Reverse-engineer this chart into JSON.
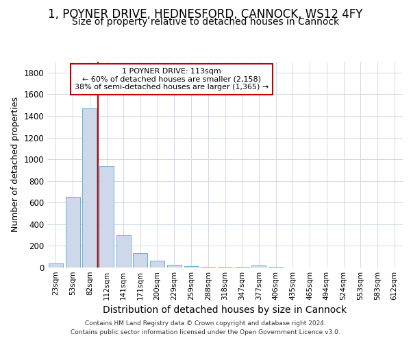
{
  "title1": "1, POYNER DRIVE, HEDNESFORD, CANNOCK, WS12 4FY",
  "title2": "Size of property relative to detached houses in Cannock",
  "xlabel": "Distribution of detached houses by size in Cannock",
  "ylabel": "Number of detached properties",
  "categories": [
    "23sqm",
    "53sqm",
    "82sqm",
    "112sqm",
    "141sqm",
    "171sqm",
    "200sqm",
    "229sqm",
    "259sqm",
    "288sqm",
    "318sqm",
    "347sqm",
    "377sqm",
    "406sqm",
    "435sqm",
    "465sqm",
    "494sqm",
    "524sqm",
    "553sqm",
    "583sqm",
    "612sqm"
  ],
  "values": [
    40,
    650,
    1470,
    940,
    295,
    130,
    65,
    25,
    10,
    5,
    5,
    5,
    20,
    5,
    0,
    0,
    0,
    0,
    0,
    0,
    0
  ],
  "bar_color": "#cdd9ea",
  "bar_edge_color": "#6baed6",
  "vline_color": "#c00000",
  "vline_x": 2.5,
  "annotation_text": "1 POYNER DRIVE: 113sqm\n← 60% of detached houses are smaller (2,158)\n38% of semi-detached houses are larger (1,365) →",
  "annotation_box_facecolor": "#ffffff",
  "annotation_box_edgecolor": "#c00000",
  "ylim": [
    0,
    1900
  ],
  "yticks": [
    0,
    200,
    400,
    600,
    800,
    1000,
    1200,
    1400,
    1600,
    1800
  ],
  "footer_line1": "Contains HM Land Registry data © Crown copyright and database right 2024.",
  "footer_line2": "Contains public sector information licensed under the Open Government Licence v3.0.",
  "bg_color": "#ffffff",
  "grid_color": "#d0d9e8",
  "title1_fontsize": 12,
  "title2_fontsize": 10,
  "tick_fontsize": 7.5,
  "ylabel_fontsize": 9,
  "xlabel_fontsize": 10,
  "footer_fontsize": 6.5,
  "annot_fontsize": 8
}
